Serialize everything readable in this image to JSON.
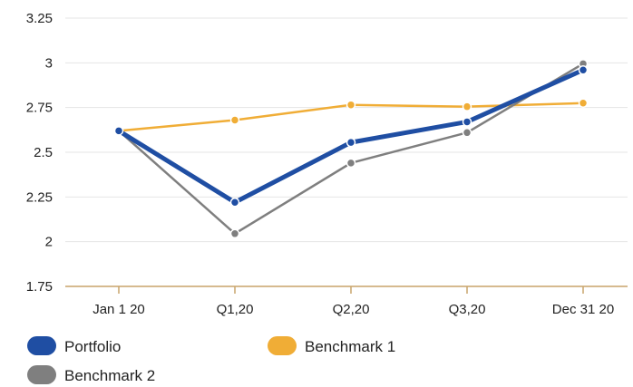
{
  "chart_data": {
    "type": "line",
    "title": "",
    "xlabel": "",
    "ylabel": "",
    "categories": [
      "Jan 1 20",
      "Q1,20",
      "Q2,20",
      "Q3,20",
      "Dec 31 20"
    ],
    "ylim": [
      1.75,
      3.25
    ],
    "yticks": [
      "1.75",
      "2",
      "2.25",
      "2.5",
      "2.75",
      "3",
      "3.25"
    ],
    "grid": "horizontal",
    "legend_position": "bottom",
    "series": [
      {
        "name": "Portfolio",
        "color": "#1f4ea3",
        "values": [
          2.62,
          2.22,
          2.555,
          2.67,
          2.96
        ]
      },
      {
        "name": "Benchmark 1",
        "color": "#f0ad36",
        "values": [
          2.62,
          2.68,
          2.765,
          2.755,
          2.775
        ]
      },
      {
        "name": "Benchmark 2",
        "color": "#7f7f7f",
        "values": [
          2.62,
          2.045,
          2.44,
          2.61,
          2.995
        ]
      }
    ],
    "axis_color": "#c9a46a",
    "grid_color": "#e4e4e4"
  }
}
